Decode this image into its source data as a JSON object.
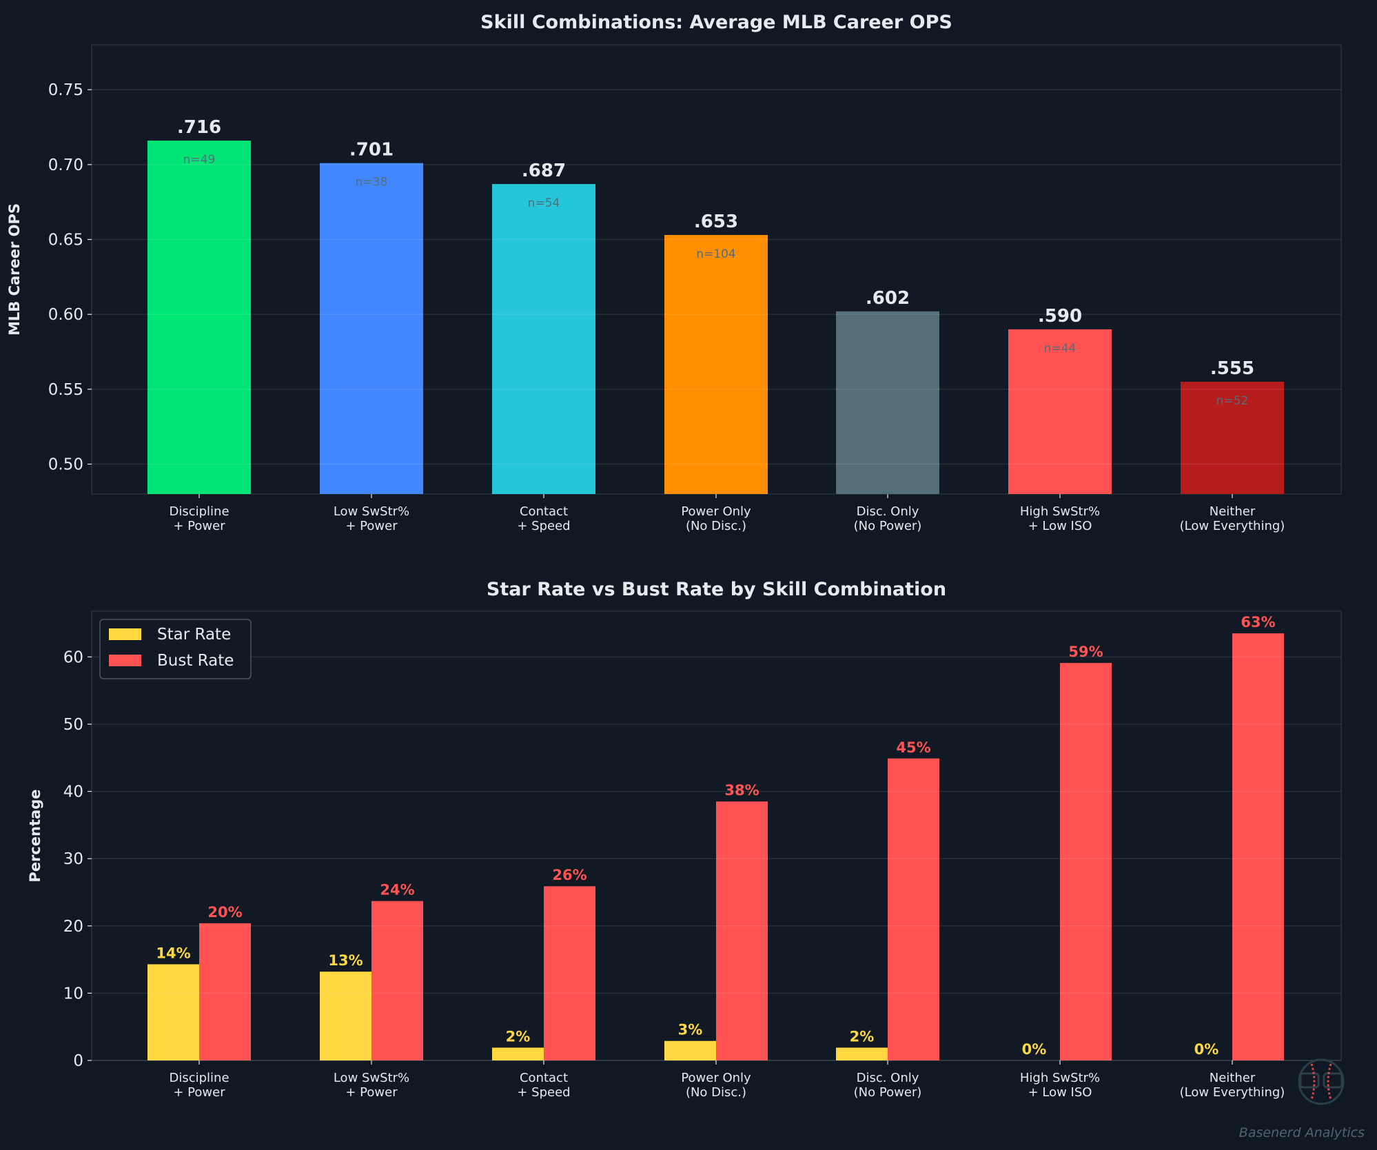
{
  "colors": {
    "background": "#0f1823",
    "axes_bg": "#111a24",
    "text": "#e6e9ee",
    "grid": "#1f2a35"
  },
  "chart_data": [
    {
      "type": "bar",
      "title": "Skill Combinations: Average MLB Career OPS",
      "ylabel": "MLB Career OPS",
      "ylim": [
        0.48,
        0.78
      ],
      "yticks": [
        0.5,
        0.55,
        0.6,
        0.65,
        0.7,
        0.75
      ],
      "ytick_labels": [
        "0.50",
        "0.55",
        "0.60",
        "0.65",
        "0.70",
        "0.75"
      ],
      "grid": true,
      "categories": [
        "Discipline\n+ Power",
        "Low SwStr%\n+ Power",
        "Contact\n+ Speed",
        "Power Only\n(No Disc.)",
        "Disc. Only\n(No Power)",
        "High SwStr%\n+ Low ISO",
        "Neither\n(Low Everything)"
      ],
      "values": [
        0.716,
        0.701,
        0.687,
        0.653,
        0.602,
        0.59,
        0.555
      ],
      "value_labels": [
        ".716",
        ".701",
        ".687",
        ".653",
        ".602",
        ".590",
        ".555"
      ],
      "n_labels": [
        "n=49",
        "n=38",
        "n=54",
        "n=104",
        "",
        "n=44",
        "n=52"
      ],
      "bar_colors": [
        "#00e676",
        "#4287ff",
        "#26c6da",
        "#ff8f00",
        "#546e7a",
        "#ff5252",
        "#b71c1c"
      ]
    },
    {
      "type": "bar",
      "title": "Star Rate vs Bust Rate by Skill Combination",
      "ylabel": "Percentage",
      "ylim": [
        0,
        66.8
      ],
      "yticks": [
        0,
        10,
        20,
        30,
        40,
        50,
        60
      ],
      "ytick_labels": [
        "0",
        "10",
        "20",
        "30",
        "40",
        "50",
        "60"
      ],
      "grid": true,
      "legend": "top-left",
      "categories": [
        "Discipline\n+ Power",
        "Low SwStr%\n+ Power",
        "Contact\n+ Speed",
        "Power Only\n(No Disc.)",
        "Disc. Only\n(No Power)",
        "High SwStr%\n+ Low ISO",
        "Neither\n(Low Everything)"
      ],
      "series": [
        {
          "name": "Star Rate",
          "color": "#ffd740",
          "values": [
            14.3,
            13.2,
            1.9,
            2.9,
            1.9,
            0,
            0
          ],
          "labels": [
            "14%",
            "13%",
            "2%",
            "3%",
            "2%",
            "0%",
            "0%"
          ]
        },
        {
          "name": "Bust Rate",
          "color": "#ff5252",
          "values": [
            20.4,
            23.7,
            25.9,
            38.5,
            44.9,
            59.1,
            63.5
          ],
          "labels": [
            "20%",
            "24%",
            "26%",
            "38%",
            "45%",
            "59%",
            "63%"
          ]
        }
      ]
    }
  ],
  "watermark": "Basenerd Analytics"
}
